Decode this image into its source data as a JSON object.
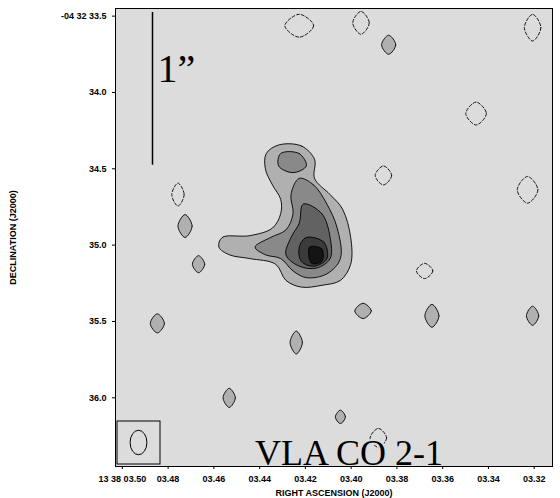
{
  "chart_data": {
    "type": "contour",
    "title": "VLA CO 2-1",
    "x_label": "RIGHT ASCENSION (J2000)",
    "y_label": "DECLINATION (J2000)",
    "xlim": [
      3.503,
      3.312
    ],
    "ylim": [
      36.45,
      33.45
    ],
    "xticks": [
      {
        "value": 3.5,
        "label": "13 38 03.50"
      },
      {
        "value": 3.48,
        "label": "03.48"
      },
      {
        "value": 3.46,
        "label": "03.46"
      },
      {
        "value": 3.44,
        "label": "03.44"
      },
      {
        "value": 3.42,
        "label": "03.42"
      },
      {
        "value": 3.4,
        "label": "03.40"
      },
      {
        "value": 3.38,
        "label": "03.38"
      },
      {
        "value": 3.36,
        "label": "03.36"
      },
      {
        "value": 3.34,
        "label": "03.34"
      },
      {
        "value": 3.32,
        "label": "03.32"
      }
    ],
    "yticks": [
      {
        "value": 33.5,
        "label": "-04 32 33.5"
      },
      {
        "value": 34,
        "label": "34.0"
      },
      34.5,
      {
        "value": 35,
        "label": "35.0"
      },
      35.5,
      {
        "value": 36,
        "label": "36.0"
      }
    ],
    "contours": [
      {
        "level": -2,
        "points": [
          [
            3.4227,
            33.488
          ],
          [
            3.4164,
            33.563
          ],
          [
            3.4227,
            33.638
          ],
          [
            3.429,
            33.563
          ]
        ]
      },
      {
        "level": -2,
        "points": [
          [
            3.3957,
            33.469
          ],
          [
            3.3921,
            33.544
          ],
          [
            3.3957,
            33.619
          ],
          [
            3.3993,
            33.544
          ]
        ]
      },
      {
        "level": -2,
        "points": [
          [
            3.4757,
            34.594
          ],
          [
            3.473,
            34.669
          ],
          [
            3.4757,
            34.744
          ],
          [
            3.4784,
            34.669
          ]
        ]
      },
      {
        "level": -2,
        "points": [
          [
            3.3859,
            34.481
          ],
          [
            3.3823,
            34.544
          ],
          [
            3.3859,
            34.606
          ],
          [
            3.3895,
            34.544
          ]
        ]
      },
      {
        "level": -2,
        "points": [
          [
            3.3454,
            34.063
          ],
          [
            3.3409,
            34.138
          ],
          [
            3.3454,
            34.213
          ],
          [
            3.3499,
            34.138
          ]
        ]
      },
      {
        "level": -2,
        "points": [
          [
            3.3229,
            34.55
          ],
          [
            3.3184,
            34.638
          ],
          [
            3.3229,
            34.725
          ],
          [
            3.3274,
            34.638
          ]
        ]
      },
      {
        "level": -2,
        "points": [
          [
            3.3679,
            35.119
          ],
          [
            3.3643,
            35.169
          ],
          [
            3.3679,
            35.219
          ],
          [
            3.3715,
            35.169
          ]
        ]
      },
      {
        "level": -2,
        "points": [
          [
            3.3881,
            36.2
          ],
          [
            3.3845,
            36.263
          ],
          [
            3.3881,
            36.325
          ],
          [
            3.3917,
            36.263
          ]
        ]
      },
      {
        "level": -2,
        "points": [
          [
            3.3207,
            33.488
          ],
          [
            3.3171,
            33.575
          ],
          [
            3.3207,
            33.663
          ],
          [
            3.3243,
            33.575
          ]
        ]
      },
      {
        "level": 2,
        "points": [
          [
            3.3836,
            33.625
          ],
          [
            3.3805,
            33.688
          ],
          [
            3.3836,
            33.75
          ],
          [
            3.3867,
            33.688
          ]
        ]
      },
      {
        "level": 2,
        "points": [
          [
            3.4726,
            34.8
          ],
          [
            3.4695,
            34.875
          ],
          [
            3.4726,
            34.95
          ],
          [
            3.4757,
            34.875
          ]
        ]
      },
      {
        "level": 2,
        "points": [
          [
            3.4667,
            35.069
          ],
          [
            3.464,
            35.125
          ],
          [
            3.4667,
            35.181
          ],
          [
            3.4694,
            35.125
          ]
        ]
      },
      {
        "level": 2,
        "points": [
          [
            3.424,
            35.563
          ],
          [
            3.4213,
            35.638
          ],
          [
            3.424,
            35.713
          ],
          [
            3.4267,
            35.638
          ]
        ]
      },
      {
        "level": 2,
        "points": [
          [
            3.3948,
            35.381
          ],
          [
            3.3912,
            35.431
          ],
          [
            3.3948,
            35.481
          ],
          [
            3.3984,
            35.431
          ]
        ]
      },
      {
        "level": 2,
        "points": [
          [
            3.3647,
            35.388
          ],
          [
            3.3616,
            35.463
          ],
          [
            3.3647,
            35.538
          ],
          [
            3.3678,
            35.463
          ]
        ]
      },
      {
        "level": 2,
        "points": [
          [
            3.4847,
            35.45
          ],
          [
            3.4816,
            35.513
          ],
          [
            3.4847,
            35.575
          ],
          [
            3.4878,
            35.513
          ]
        ]
      },
      {
        "level": 2,
        "points": [
          [
            3.4533,
            35.938
          ],
          [
            3.4506,
            36.0
          ],
          [
            3.4533,
            36.063
          ],
          [
            3.456,
            36.0
          ]
        ]
      },
      {
        "level": 2,
        "points": [
          [
            3.4047,
            36.081
          ],
          [
            3.4025,
            36.125
          ],
          [
            3.4047,
            36.169
          ],
          [
            3.4069,
            36.125
          ]
        ]
      },
      {
        "level": 2,
        "points": [
          [
            3.3207,
            35.4
          ],
          [
            3.318,
            35.463
          ],
          [
            3.3207,
            35.525
          ],
          [
            3.3234,
            35.463
          ]
        ]
      },
      {
        "level": 2,
        "points": [
          [
            3.4317,
            34.344
          ],
          [
            3.4218,
            34.35
          ],
          [
            3.416,
            34.438
          ],
          [
            3.416,
            34.563
          ],
          [
            3.4092,
            34.669
          ],
          [
            3.4038,
            34.763
          ],
          [
            3.4002,
            34.95
          ],
          [
            3.4002,
            35.125
          ],
          [
            3.4047,
            35.231
          ],
          [
            3.4128,
            35.263
          ],
          [
            3.4218,
            35.275
          ],
          [
            3.4285,
            35.231
          ],
          [
            3.433,
            35.125
          ],
          [
            3.4443,
            35.088
          ],
          [
            3.4533,
            35.063
          ],
          [
            3.4578,
            35.013
          ],
          [
            3.4564,
            34.95
          ],
          [
            3.4443,
            34.938
          ],
          [
            3.4344,
            34.888
          ],
          [
            3.4308,
            34.794
          ],
          [
            3.4308,
            34.7
          ],
          [
            3.4344,
            34.606
          ],
          [
            3.4375,
            34.5
          ],
          [
            3.4371,
            34.4
          ]
        ]
      },
      {
        "level": 3,
        "points": [
          [
            3.4227,
            34.563
          ],
          [
            3.4164,
            34.606
          ],
          [
            3.4106,
            34.731
          ],
          [
            3.4061,
            34.888
          ],
          [
            3.4047,
            35.088
          ],
          [
            3.4106,
            35.188
          ],
          [
            3.4196,
            35.213
          ],
          [
            3.4254,
            35.169
          ],
          [
            3.4308,
            35.088
          ],
          [
            3.4375,
            35.063
          ],
          [
            3.442,
            35.013
          ],
          [
            3.4353,
            34.95
          ],
          [
            3.4285,
            34.9
          ],
          [
            3.4254,
            34.794
          ],
          [
            3.4263,
            34.669
          ]
        ]
      },
      {
        "level": 3,
        "points": [
          [
            3.4308,
            34.4
          ],
          [
            3.4227,
            34.4
          ],
          [
            3.4196,
            34.481
          ],
          [
            3.4254,
            34.525
          ],
          [
            3.4317,
            34.481
          ]
        ]
      },
      {
        "level": 4,
        "points": [
          [
            3.4209,
            34.731
          ],
          [
            3.4128,
            34.794
          ],
          [
            3.4092,
            34.95
          ],
          [
            3.4092,
            35.088
          ],
          [
            3.4151,
            35.15
          ],
          [
            3.4227,
            35.138
          ],
          [
            3.4285,
            35.063
          ],
          [
            3.4263,
            34.95
          ],
          [
            3.4227,
            34.856
          ]
        ]
      },
      {
        "level": 5,
        "points": [
          [
            3.4196,
            34.95
          ],
          [
            3.4119,
            34.981
          ],
          [
            3.4106,
            35.088
          ],
          [
            3.4164,
            35.138
          ],
          [
            3.4218,
            35.106
          ],
          [
            3.4227,
            35.013
          ]
        ]
      },
      {
        "level": 6,
        "points": [
          [
            3.4182,
            35.013
          ],
          [
            3.4128,
            35.025
          ],
          [
            3.4128,
            35.106
          ],
          [
            3.4173,
            35.119
          ]
        ]
      }
    ],
    "beam": {
      "major": 0.16,
      "minor": 0.11
    },
    "scale_bar": {
      "label": "1”",
      "length": 1
    }
  }
}
